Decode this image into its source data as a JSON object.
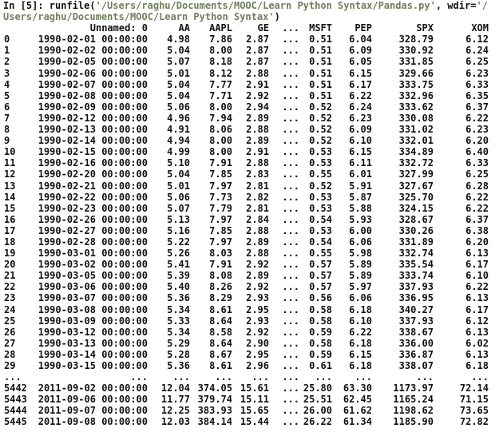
{
  "console": {
    "command": {
      "line1": [
        "In [5]: runfile(",
        "'/Users/raghu/Documents/MOOC/Learn Python Syntax/Pandas.py'",
        ", wdir=",
        "'/"
      ],
      "line2": [
        "Users/raghu/Documents/MOOC/Learn Python Syntax'",
        ")"
      ]
    },
    "table": {
      "columns": [
        "Unnamed: 0",
        "AA",
        "AAPL",
        "GE",
        "...",
        "MSFT",
        "PEP",
        "SPX",
        "XOM"
      ],
      "rows": [
        [
          "0",
          "1990-02-01 00:00:00",
          "4.98",
          "7.86",
          "2.87",
          "...",
          "0.51",
          "6.04",
          "328.79",
          "6.12"
        ],
        [
          "1",
          "1990-02-02 00:00:00",
          "5.04",
          "8.00",
          "2.87",
          "...",
          "0.51",
          "6.09",
          "330.92",
          "6.24"
        ],
        [
          "2",
          "1990-02-05 00:00:00",
          "5.07",
          "8.18",
          "2.87",
          "...",
          "0.51",
          "6.05",
          "331.85",
          "6.25"
        ],
        [
          "3",
          "1990-02-06 00:00:00",
          "5.01",
          "8.12",
          "2.88",
          "...",
          "0.51",
          "6.15",
          "329.66",
          "6.23"
        ],
        [
          "4",
          "1990-02-07 00:00:00",
          "5.04",
          "7.77",
          "2.91",
          "...",
          "0.51",
          "6.17",
          "333.75",
          "6.33"
        ],
        [
          "5",
          "1990-02-08 00:00:00",
          "5.04",
          "7.71",
          "2.92",
          "...",
          "0.51",
          "6.22",
          "332.96",
          "6.35"
        ],
        [
          "6",
          "1990-02-09 00:00:00",
          "5.06",
          "8.00",
          "2.94",
          "...",
          "0.52",
          "6.24",
          "333.62",
          "6.37"
        ],
        [
          "7",
          "1990-02-12 00:00:00",
          "4.96",
          "7.94",
          "2.89",
          "...",
          "0.52",
          "6.23",
          "330.08",
          "6.22"
        ],
        [
          "8",
          "1990-02-13 00:00:00",
          "4.91",
          "8.06",
          "2.88",
          "...",
          "0.52",
          "6.09",
          "331.02",
          "6.23"
        ],
        [
          "9",
          "1990-02-14 00:00:00",
          "4.94",
          "8.00",
          "2.89",
          "...",
          "0.52",
          "6.10",
          "332.01",
          "6.20"
        ],
        [
          "10",
          "1990-02-15 00:00:00",
          "4.99",
          "8.00",
          "2.91",
          "...",
          "0.53",
          "6.15",
          "334.89",
          "6.40"
        ],
        [
          "11",
          "1990-02-16 00:00:00",
          "5.10",
          "7.91",
          "2.88",
          "...",
          "0.53",
          "6.11",
          "332.72",
          "6.33"
        ],
        [
          "12",
          "1990-02-20 00:00:00",
          "5.04",
          "7.85",
          "2.83",
          "...",
          "0.55",
          "6.01",
          "327.99",
          "6.25"
        ],
        [
          "13",
          "1990-02-21 00:00:00",
          "5.01",
          "7.97",
          "2.81",
          "...",
          "0.52",
          "5.91",
          "327.67",
          "6.28"
        ],
        [
          "14",
          "1990-02-22 00:00:00",
          "5.06",
          "7.73",
          "2.82",
          "...",
          "0.53",
          "5.87",
          "325.70",
          "6.22"
        ],
        [
          "15",
          "1990-02-23 00:00:00",
          "5.07",
          "7.79",
          "2.81",
          "...",
          "0.53",
          "5.88",
          "324.15",
          "6.22"
        ],
        [
          "16",
          "1990-02-26 00:00:00",
          "5.13",
          "7.97",
          "2.84",
          "...",
          "0.54",
          "5.93",
          "328.67",
          "6.37"
        ],
        [
          "17",
          "1990-02-27 00:00:00",
          "5.16",
          "7.85",
          "2.88",
          "...",
          "0.53",
          "6.00",
          "330.26",
          "6.38"
        ],
        [
          "18",
          "1990-02-28 00:00:00",
          "5.22",
          "7.97",
          "2.89",
          "...",
          "0.54",
          "6.06",
          "331.89",
          "6.20"
        ],
        [
          "19",
          "1990-03-01 00:00:00",
          "5.26",
          "8.03",
          "2.88",
          "...",
          "0.55",
          "5.98",
          "332.74",
          "6.13"
        ],
        [
          "20",
          "1990-03-02 00:00:00",
          "5.41",
          "7.91",
          "2.92",
          "...",
          "0.57",
          "5.89",
          "335.54",
          "6.17"
        ],
        [
          "21",
          "1990-03-05 00:00:00",
          "5.39",
          "8.08",
          "2.89",
          "...",
          "0.57",
          "5.89",
          "333.74",
          "6.10"
        ],
        [
          "22",
          "1990-03-06 00:00:00",
          "5.40",
          "8.26",
          "2.92",
          "...",
          "0.57",
          "5.97",
          "337.93",
          "6.22"
        ],
        [
          "23",
          "1990-03-07 00:00:00",
          "5.36",
          "8.29",
          "2.93",
          "...",
          "0.56",
          "6.06",
          "336.95",
          "6.13"
        ],
        [
          "24",
          "1990-03-08 00:00:00",
          "5.34",
          "8.61",
          "2.95",
          "...",
          "0.58",
          "6.18",
          "340.27",
          "6.17"
        ],
        [
          "25",
          "1990-03-09 00:00:00",
          "5.33",
          "8.64",
          "2.93",
          "...",
          "0.58",
          "6.10",
          "337.93",
          "6.12"
        ],
        [
          "26",
          "1990-03-12 00:00:00",
          "5.34",
          "8.58",
          "2.92",
          "...",
          "0.59",
          "6.22",
          "338.67",
          "6.13"
        ],
        [
          "27",
          "1990-03-13 00:00:00",
          "5.29",
          "8.64",
          "2.90",
          "...",
          "0.58",
          "6.18",
          "336.00",
          "6.02"
        ],
        [
          "28",
          "1990-03-14 00:00:00",
          "5.28",
          "8.67",
          "2.95",
          "...",
          "0.59",
          "6.15",
          "336.87",
          "6.13"
        ],
        [
          "29",
          "1990-03-15 00:00:00",
          "5.36",
          "8.61",
          "2.96",
          "...",
          "0.61",
          "6.18",
          "338.07",
          "6.18"
        ],
        [
          "...",
          "...",
          "...",
          "...",
          "...",
          "...",
          "...",
          "...",
          "...",
          "..."
        ],
        [
          "5442",
          "2011-09-02 00:00:00",
          "12.04",
          "374.05",
          "15.61",
          "...",
          "25.80",
          "63.30",
          "1173.97",
          "72.14"
        ],
        [
          "5443",
          "2011-09-06 00:00:00",
          "11.77",
          "379.74",
          "15.11",
          "...",
          "25.51",
          "62.45",
          "1165.24",
          "71.15"
        ],
        [
          "5444",
          "2011-09-07 00:00:00",
          "12.25",
          "383.93",
          "15.65",
          "...",
          "26.00",
          "61.62",
          "1198.62",
          "73.65"
        ],
        [
          "5445",
          "2011-09-08 00:00:00",
          "12.03",
          "384.14",
          "15.44",
          "...",
          "26.22",
          "61.34",
          "1185.90",
          "72.82"
        ]
      ]
    }
  }
}
